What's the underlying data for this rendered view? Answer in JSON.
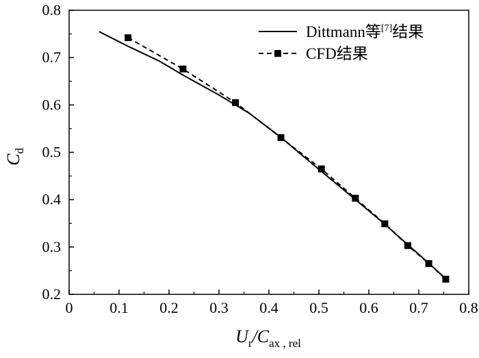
{
  "chart_data": {
    "type": "line",
    "xlim": [
      0,
      0.8
    ],
    "ylim": [
      0.2,
      0.8
    ],
    "xticks": [
      0,
      0.1,
      0.2,
      0.3,
      0.4,
      0.5,
      0.6,
      0.7,
      0.8
    ],
    "yticks": [
      0.2,
      0.3,
      0.4,
      0.5,
      0.6,
      0.7,
      0.8
    ],
    "xtick_labels": [
      "0",
      "0.1",
      "0.2",
      "0.3",
      "0.4",
      "0.5",
      "0.6",
      "0.7",
      "0.8"
    ],
    "ytick_labels": [
      "0.2",
      "0.3",
      "0.4",
      "0.5",
      "0.6",
      "0.7",
      "0.8"
    ],
    "xlabel": {
      "main": "U",
      "main_sub": "r",
      "sep": "/",
      "denom": "C",
      "denom_sub": "ax , rel"
    },
    "ylabel": {
      "main": "C",
      "sub": "d"
    },
    "legend_position": "top-right",
    "grid": false,
    "series": [
      {
        "name": "Dittmann等",
        "name_sup": "[7]",
        "name_suffix": "结果",
        "style": "solid",
        "marker": "none",
        "color": "#000000",
        "x": [
          0.06,
          0.12,
          0.18,
          0.23,
          0.3,
          0.36,
          0.42,
          0.5,
          0.57,
          0.63,
          0.68,
          0.72,
          0.755
        ],
        "y": [
          0.755,
          0.723,
          0.693,
          0.662,
          0.621,
          0.583,
          0.535,
          0.464,
          0.403,
          0.35,
          0.303,
          0.266,
          0.232
        ]
      },
      {
        "name": "CFD结果",
        "style": "dashed",
        "marker": "square",
        "color": "#000000",
        "x": [
          0.118,
          0.228,
          0.333,
          0.424,
          0.505,
          0.573,
          0.632,
          0.678,
          0.72,
          0.754
        ],
        "y": [
          0.742,
          0.676,
          0.605,
          0.531,
          0.465,
          0.403,
          0.349,
          0.303,
          0.265,
          0.232
        ]
      }
    ]
  }
}
